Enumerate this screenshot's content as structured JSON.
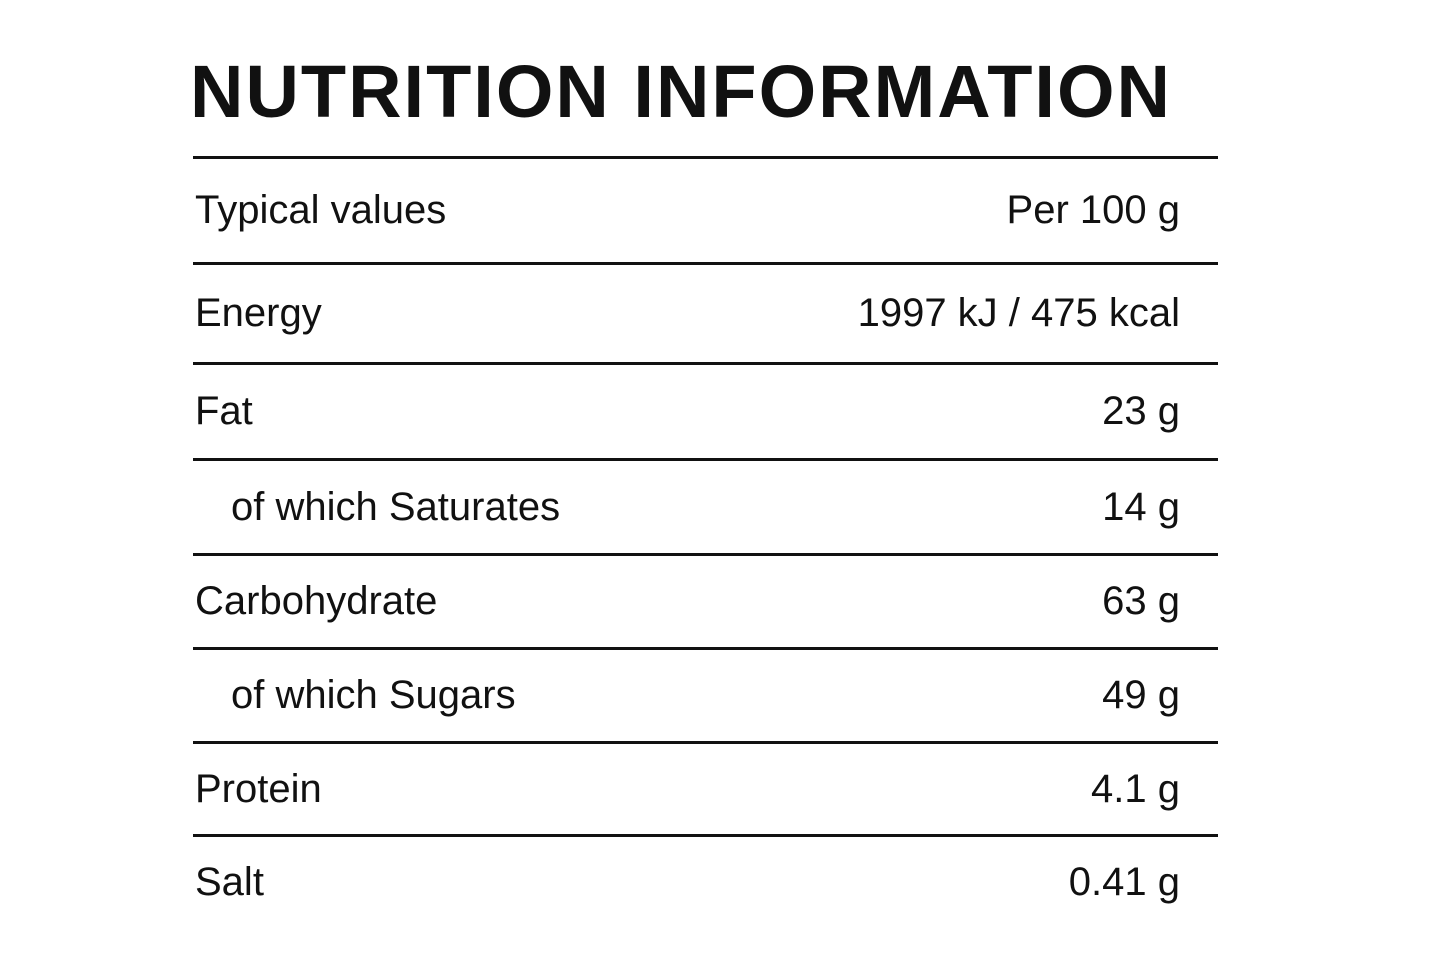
{
  "header": {
    "title": "NUTRITION INFORMATION"
  },
  "table": {
    "header": [
      "Typical values",
      "Per 100 g"
    ],
    "rows": [
      [
        "Energy",
        "1997 kJ / 475 kcal"
      ],
      [
        "Fat",
        "23 g"
      ],
      [
        "of which Saturates",
        "14 g"
      ],
      [
        "Carbohydrate",
        "63 g"
      ],
      [
        "of which Sugars",
        "49 g"
      ],
      [
        "Protein",
        "4.1 g"
      ],
      [
        "Salt",
        "0.41 g"
      ]
    ]
  }
}
